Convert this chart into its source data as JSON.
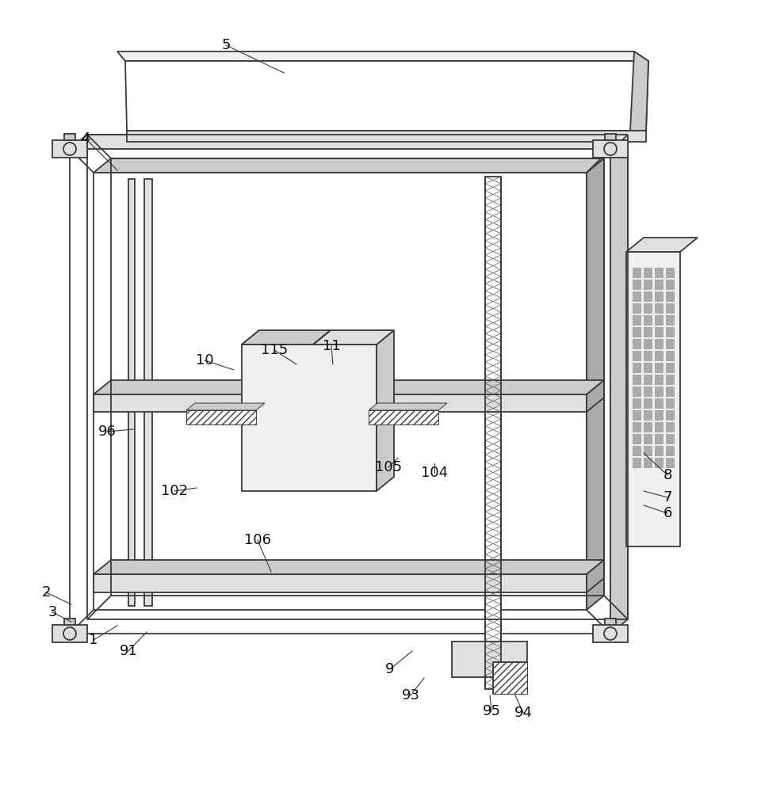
{
  "bg_color": "#ffffff",
  "lc": "#3a3a3a",
  "lw": 1.3,
  "thin": 0.7,
  "gray1": "#f0f0f0",
  "gray2": "#e0e0e0",
  "gray3": "#cccccc",
  "gray4": "#aaaaaa",
  "gray5": "#888888",
  "white": "#ffffff"
}
